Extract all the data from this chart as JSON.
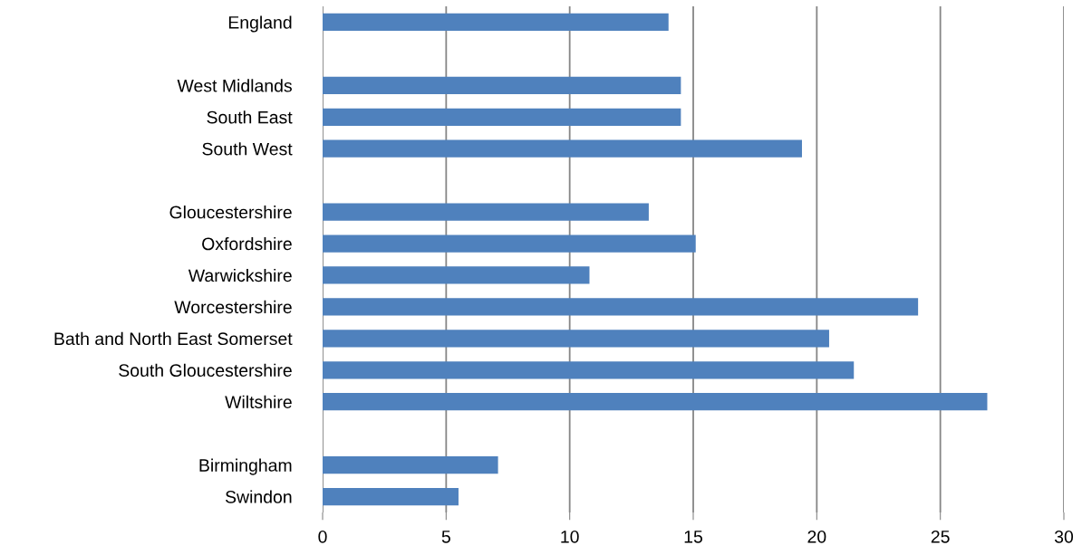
{
  "chart_data": {
    "type": "bar",
    "orientation": "horizontal",
    "categories": [
      "England",
      null,
      "West Midlands",
      "South East",
      "South West",
      null,
      "Gloucestershire",
      "Oxfordshire",
      "Warwickshire",
      "Worcestershire",
      "Bath and North East Somerset",
      "South Gloucestershire",
      "Wiltshire",
      null,
      "Birmingham",
      "Swindon"
    ],
    "values": [
      14.0,
      null,
      14.5,
      14.5,
      19.4,
      null,
      13.2,
      15.1,
      10.8,
      24.1,
      20.5,
      21.5,
      26.9,
      null,
      7.1,
      5.5
    ],
    "color": "#4f81bd",
    "xlim": [
      0,
      30
    ],
    "xticks": [
      0,
      5,
      10,
      15,
      20,
      25,
      30
    ],
    "grid": "x"
  }
}
